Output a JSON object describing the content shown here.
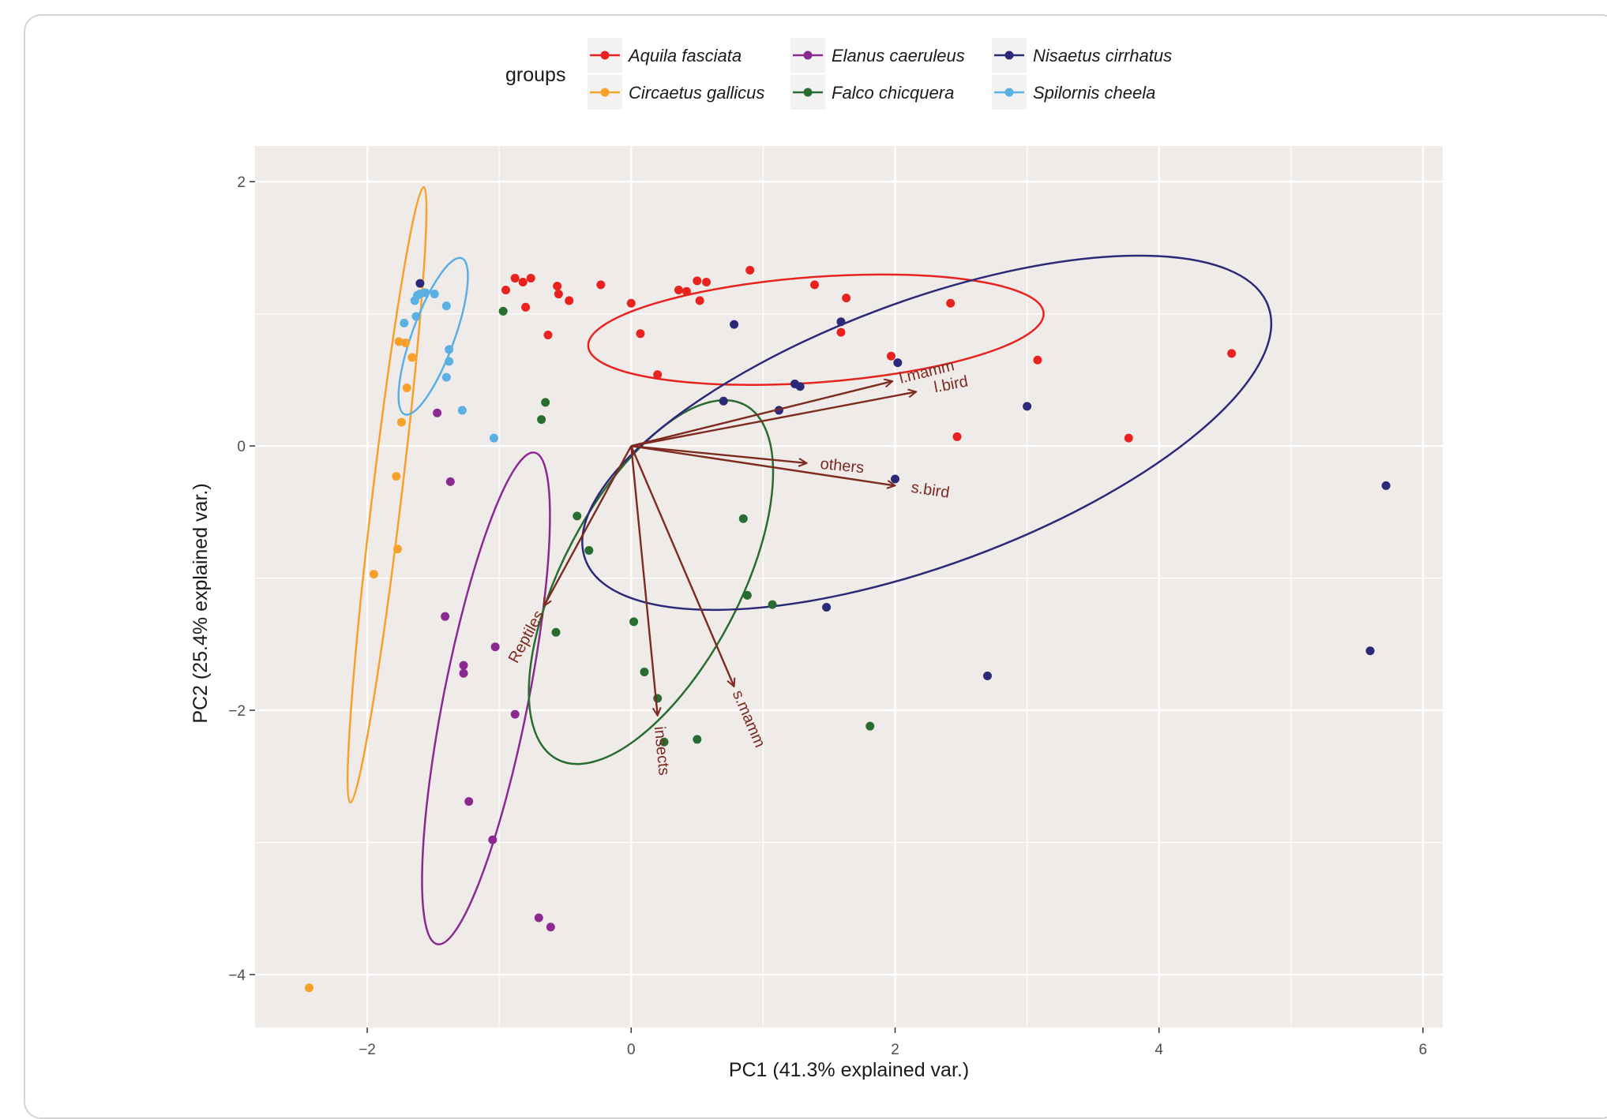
{
  "chart_data": {
    "type": "scatter",
    "subtype": "PCA biplot",
    "xlabel": "PC1 (41.3% explained var.)",
    "ylabel": "PC2 (25.4% explained var.)",
    "xlim": [
      -2.85,
      6.15
    ],
    "ylim": [
      -4.4,
      2.27
    ],
    "xticks": [
      -2,
      0,
      2,
      4,
      6
    ],
    "yticks": [
      2,
      0,
      -2,
      -4
    ],
    "grid": true,
    "panel_background": "#efebe9",
    "legend": {
      "title": "groups",
      "position": "top",
      "columns": 3,
      "order": [
        "Aquila fasciata",
        "Circaetus gallicus",
        "Elanus caeruleus",
        "Falco chicquera",
        "Nisaetus cirrhatus",
        "Spilornis cheela"
      ]
    },
    "series": [
      {
        "name": "Aquila fasciata",
        "color": "#e8231f",
        "points": [
          [
            -0.95,
            1.18
          ],
          [
            -0.88,
            1.27
          ],
          [
            -0.82,
            1.24
          ],
          [
            -0.76,
            1.27
          ],
          [
            -0.8,
            1.05
          ],
          [
            -0.63,
            0.84
          ],
          [
            -0.56,
            1.21
          ],
          [
            -0.55,
            1.15
          ],
          [
            -0.47,
            1.1
          ],
          [
            -0.23,
            1.22
          ],
          [
            0.0,
            1.08
          ],
          [
            0.07,
            0.85
          ],
          [
            0.2,
            0.54
          ],
          [
            0.36,
            1.18
          ],
          [
            0.42,
            1.17
          ],
          [
            0.5,
            1.25
          ],
          [
            0.52,
            1.1
          ],
          [
            0.57,
            1.24
          ],
          [
            0.9,
            1.33
          ],
          [
            1.39,
            1.22
          ],
          [
            1.59,
            0.86
          ],
          [
            1.63,
            1.12
          ],
          [
            1.97,
            0.68
          ],
          [
            2.42,
            1.08
          ],
          [
            2.47,
            0.07
          ],
          [
            3.08,
            0.65
          ],
          [
            3.77,
            0.06
          ],
          [
            4.55,
            0.7
          ]
        ],
        "ellipse": {
          "cx": 1.4,
          "cy": 0.88,
          "rx": 1.73,
          "ry": 0.4,
          "angle": -4.2
        }
      },
      {
        "name": "Circaetus gallicus",
        "color": "#f7a12b",
        "points": [
          [
            -1.76,
            0.79
          ],
          [
            -1.71,
            0.78
          ],
          [
            -1.66,
            0.67
          ],
          [
            -1.7,
            0.44
          ],
          [
            -1.74,
            0.18
          ],
          [
            -1.78,
            -0.23
          ],
          [
            -1.77,
            -0.78
          ],
          [
            -1.95,
            -0.97
          ],
          [
            -2.44,
            -4.1
          ]
        ],
        "ellipse": {
          "cx": -1.85,
          "cy": -0.37,
          "rx": 2.35,
          "ry": 0.11,
          "angle": -83.2
        }
      },
      {
        "name": "Elanus caeruleus",
        "color": "#8b2991",
        "points": [
          [
            -1.47,
            0.25
          ],
          [
            -1.37,
            -0.27
          ],
          [
            -1.41,
            -1.29
          ],
          [
            -1.27,
            -1.66
          ],
          [
            -1.27,
            -1.72
          ],
          [
            -1.03,
            -1.52
          ],
          [
            -0.88,
            -2.03
          ],
          [
            -1.23,
            -2.69
          ],
          [
            -1.05,
            -2.98
          ],
          [
            -0.7,
            -3.57
          ],
          [
            -0.61,
            -3.64
          ]
        ],
        "ellipse": {
          "cx": -1.1,
          "cy": -1.91,
          "rx": 1.9,
          "ry": 0.32,
          "angle": -78.8
        }
      },
      {
        "name": "Falco chicquera",
        "color": "#296c30",
        "points": [
          [
            -0.97,
            1.02
          ],
          [
            -0.65,
            0.33
          ],
          [
            -0.68,
            0.2
          ],
          [
            -0.41,
            -0.53
          ],
          [
            -0.32,
            -0.79
          ],
          [
            -0.57,
            -1.41
          ],
          [
            0.02,
            -1.33
          ],
          [
            0.1,
            -1.71
          ],
          [
            0.2,
            -1.91
          ],
          [
            0.25,
            -2.24
          ],
          [
            0.5,
            -2.22
          ],
          [
            0.85,
            -0.55
          ],
          [
            0.88,
            -1.13
          ],
          [
            1.07,
            -1.2
          ],
          [
            1.81,
            -2.12
          ]
        ],
        "ellipse": {
          "cx": 0.15,
          "cy": -1.03,
          "rx": 1.52,
          "ry": 0.67,
          "angle": -62.1
        }
      },
      {
        "name": "Nisaetus cirrhatus",
        "color": "#2b2978",
        "points": [
          [
            -1.6,
            1.23
          ],
          [
            0.78,
            0.92
          ],
          [
            0.7,
            0.34
          ],
          [
            1.12,
            0.27
          ],
          [
            1.24,
            0.47
          ],
          [
            1.28,
            0.45
          ],
          [
            1.59,
            0.94
          ],
          [
            2.02,
            0.63
          ],
          [
            2.0,
            -0.25
          ],
          [
            3.0,
            0.3
          ],
          [
            1.48,
            -1.22
          ],
          [
            2.7,
            -1.74
          ],
          [
            5.6,
            -1.55
          ],
          [
            5.72,
            -0.3
          ]
        ],
        "ellipse": {
          "cx": 2.24,
          "cy": 0.1,
          "rx": 2.76,
          "ry": 1.0,
          "angle": -20.4
        }
      },
      {
        "name": "Spilornis cheela",
        "color": "#5aafe3",
        "points": [
          [
            -1.72,
            0.93
          ],
          [
            -1.64,
            1.1
          ],
          [
            -1.62,
            1.14
          ],
          [
            -1.6,
            1.15
          ],
          [
            -1.56,
            1.16
          ],
          [
            -1.49,
            1.15
          ],
          [
            -1.63,
            0.98
          ],
          [
            -1.4,
            1.06
          ],
          [
            -1.38,
            0.73
          ],
          [
            -1.38,
            0.64
          ],
          [
            -1.4,
            0.52
          ],
          [
            -1.28,
            0.27
          ],
          [
            -1.04,
            0.06
          ]
        ],
        "ellipse": {
          "cx": -1.5,
          "cy": 0.83,
          "rx": 0.63,
          "ry": 0.16,
          "angle": -70
        }
      }
    ],
    "loadings": {
      "color": "#7d2a20",
      "vectors": [
        {
          "label": "l.mamm",
          "x": 1.98,
          "y": 0.49
        },
        {
          "label": "l.bird",
          "x": 2.16,
          "y": 0.41
        },
        {
          "label": "others",
          "x": 1.33,
          "y": -0.13
        },
        {
          "label": "s.bird",
          "x": 2.0,
          "y": -0.3
        },
        {
          "label": "Reptiles",
          "x": -0.66,
          "y": -1.21
        },
        {
          "label": "insects",
          "x": 0.2,
          "y": -2.04
        },
        {
          "label": "s.mamm",
          "x": 0.78,
          "y": -1.82
        }
      ]
    }
  }
}
